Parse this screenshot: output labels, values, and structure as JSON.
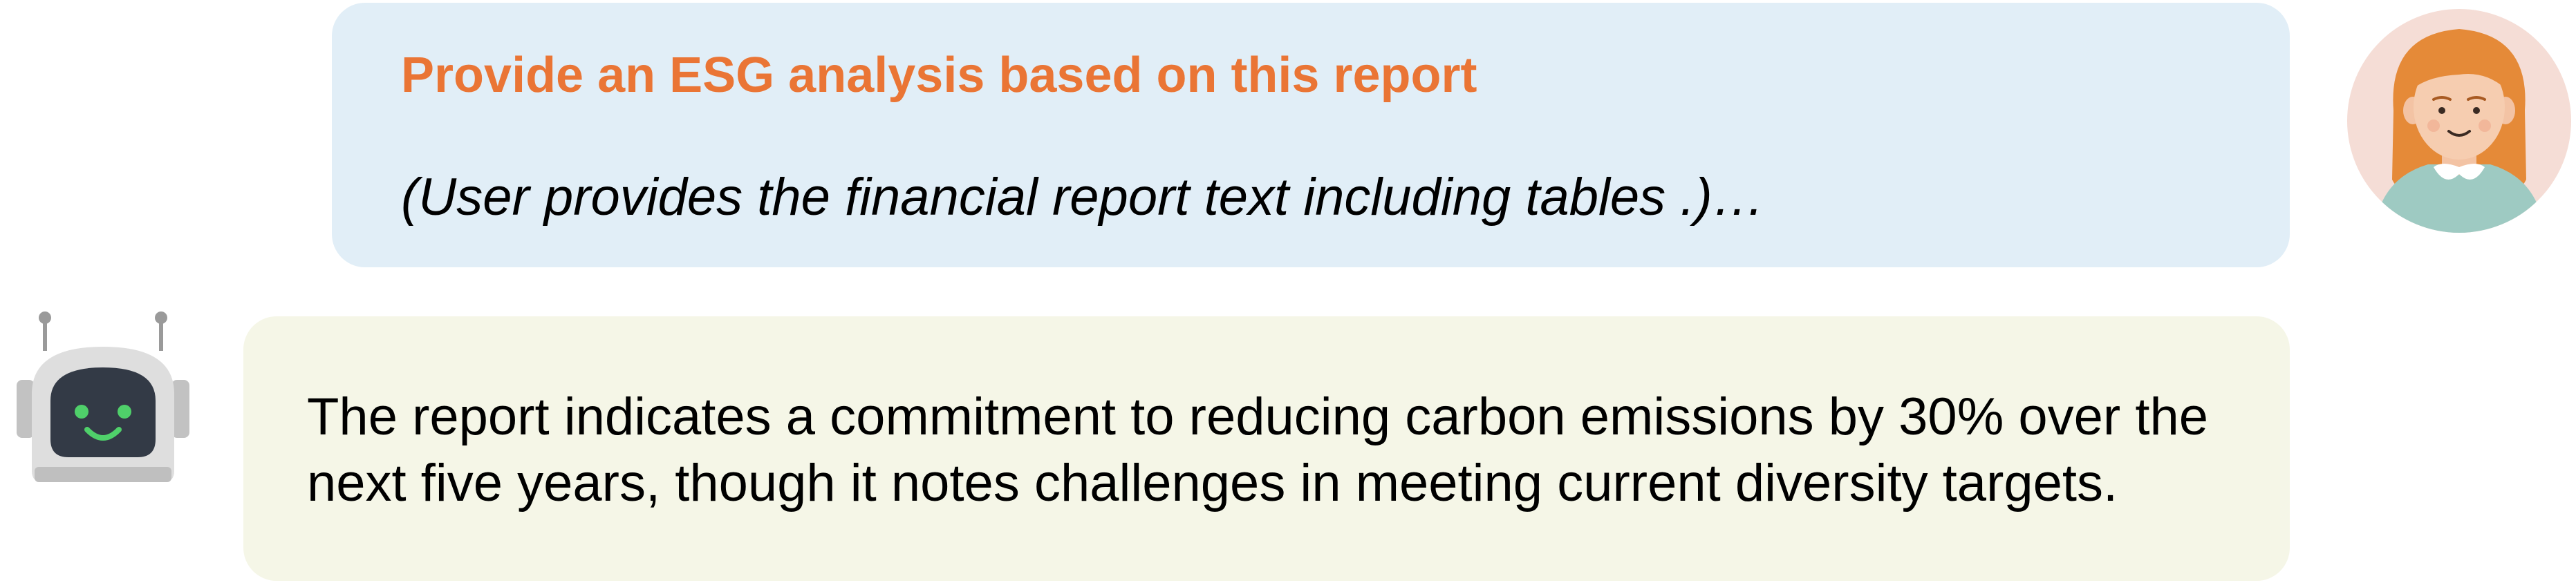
{
  "user_message": {
    "title": "Provide an ESG analysis based on this report",
    "note": "(User provides the financial report text including tables .)…"
  },
  "assistant_message": {
    "text": "The report indicates a commitment to reducing carbon emissions by 30% over the next five years, though it notes challenges in meeting current diversity targets."
  },
  "icons": {
    "user_avatar": "user-avatar-icon",
    "bot_avatar": "robot-icon"
  },
  "colors": {
    "user_bubble": "#e1eef7",
    "bot_bubble": "#f5f6e7",
    "title_accent": "#ea7535",
    "user_avatar_bg": "#f5ddd6",
    "robot_face": "#333a46",
    "robot_eyes": "#4fd06a"
  }
}
